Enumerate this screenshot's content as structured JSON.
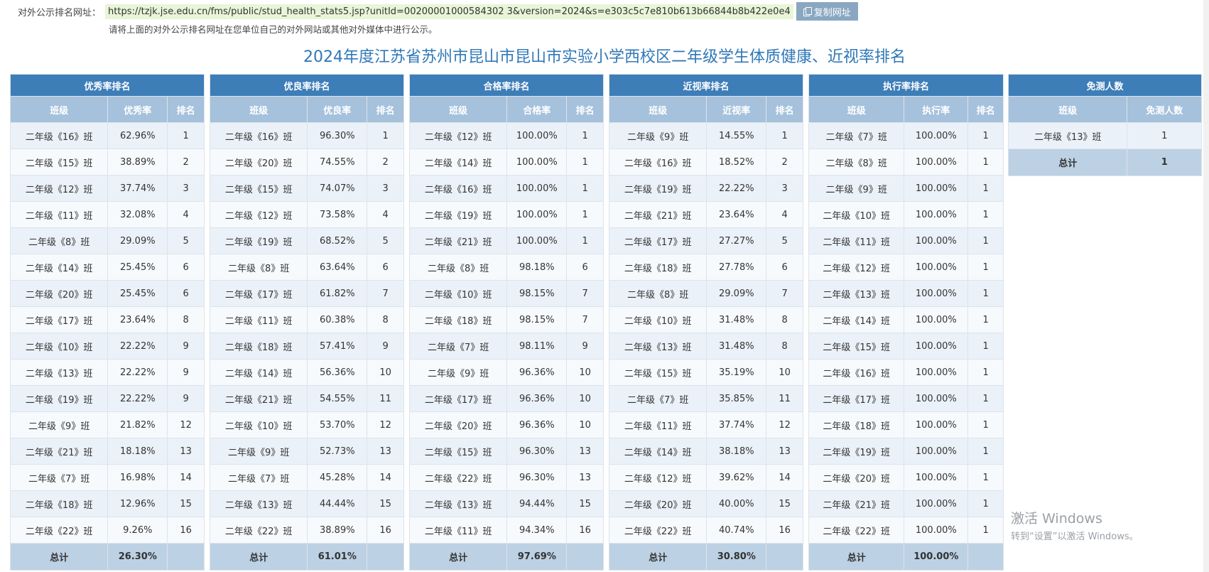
{
  "header": {
    "url_label": "对外公示排名网址：",
    "url": "https://tzjk.jse.edu.cn/fms/public/stud_health_stats5.jsp?unitId=00200001000584302 3&version=2024&s=e303c5c7e810b613b66844b8b422e0e4",
    "copy_button": "复制网址",
    "note": "请将上面的对外公示排名网址在您单位自己的对外网站或其他对外媒体中进行公示。"
  },
  "title": "2024年度江苏省苏州市昆山市昆山市实验小学西校区二年级学生体质健康、近视率排名",
  "tables": [
    {
      "title": "优秀率排名",
      "columns": [
        "班级",
        "优秀率",
        "排名"
      ],
      "rows": [
        [
          "二年级《16》班",
          "62.96%",
          "1"
        ],
        [
          "二年级《15》班",
          "38.89%",
          "2"
        ],
        [
          "二年级《12》班",
          "37.74%",
          "3"
        ],
        [
          "二年级《11》班",
          "32.08%",
          "4"
        ],
        [
          "二年级《8》班",
          "29.09%",
          "5"
        ],
        [
          "二年级《14》班",
          "25.45%",
          "6"
        ],
        [
          "二年级《20》班",
          "25.45%",
          "6"
        ],
        [
          "二年级《17》班",
          "23.64%",
          "8"
        ],
        [
          "二年级《10》班",
          "22.22%",
          "9"
        ],
        [
          "二年级《13》班",
          "22.22%",
          "9"
        ],
        [
          "二年级《19》班",
          "22.22%",
          "9"
        ],
        [
          "二年级《9》班",
          "21.82%",
          "12"
        ],
        [
          "二年级《21》班",
          "18.18%",
          "13"
        ],
        [
          "二年级《7》班",
          "16.98%",
          "14"
        ],
        [
          "二年级《18》班",
          "12.96%",
          "15"
        ],
        [
          "二年级《22》班",
          "9.26%",
          "16"
        ]
      ],
      "total": [
        "总计",
        "26.30%",
        ""
      ]
    },
    {
      "title": "优良率排名",
      "columns": [
        "班级",
        "优良率",
        "排名"
      ],
      "rows": [
        [
          "二年级《16》班",
          "96.30%",
          "1"
        ],
        [
          "二年级《20》班",
          "74.55%",
          "2"
        ],
        [
          "二年级《15》班",
          "74.07%",
          "3"
        ],
        [
          "二年级《12》班",
          "73.58%",
          "4"
        ],
        [
          "二年级《19》班",
          "68.52%",
          "5"
        ],
        [
          "二年级《8》班",
          "63.64%",
          "6"
        ],
        [
          "二年级《17》班",
          "61.82%",
          "7"
        ],
        [
          "二年级《11》班",
          "60.38%",
          "8"
        ],
        [
          "二年级《18》班",
          "57.41%",
          "9"
        ],
        [
          "二年级《14》班",
          "56.36%",
          "10"
        ],
        [
          "二年级《21》班",
          "54.55%",
          "11"
        ],
        [
          "二年级《10》班",
          "53.70%",
          "12"
        ],
        [
          "二年级《9》班",
          "52.73%",
          "13"
        ],
        [
          "二年级《7》班",
          "45.28%",
          "14"
        ],
        [
          "二年级《13》班",
          "44.44%",
          "15"
        ],
        [
          "二年级《22》班",
          "38.89%",
          "16"
        ]
      ],
      "total": [
        "总计",
        "61.01%",
        ""
      ]
    },
    {
      "title": "合格率排名",
      "columns": [
        "班级",
        "合格率",
        "排名"
      ],
      "rows": [
        [
          "二年级《12》班",
          "100.00%",
          "1"
        ],
        [
          "二年级《14》班",
          "100.00%",
          "1"
        ],
        [
          "二年级《16》班",
          "100.00%",
          "1"
        ],
        [
          "二年级《19》班",
          "100.00%",
          "1"
        ],
        [
          "二年级《21》班",
          "100.00%",
          "1"
        ],
        [
          "二年级《8》班",
          "98.18%",
          "6"
        ],
        [
          "二年级《10》班",
          "98.15%",
          "7"
        ],
        [
          "二年级《18》班",
          "98.15%",
          "7"
        ],
        [
          "二年级《7》班",
          "98.11%",
          "9"
        ],
        [
          "二年级《9》班",
          "96.36%",
          "10"
        ],
        [
          "二年级《17》班",
          "96.36%",
          "10"
        ],
        [
          "二年级《20》班",
          "96.36%",
          "10"
        ],
        [
          "二年级《15》班",
          "96.30%",
          "13"
        ],
        [
          "二年级《22》班",
          "96.30%",
          "13"
        ],
        [
          "二年级《13》班",
          "94.44%",
          "15"
        ],
        [
          "二年级《11》班",
          "94.34%",
          "16"
        ]
      ],
      "total": [
        "总计",
        "97.69%",
        ""
      ]
    },
    {
      "title": "近视率排名",
      "columns": [
        "班级",
        "近视率",
        "排名"
      ],
      "rows": [
        [
          "二年级《9》班",
          "14.55%",
          "1"
        ],
        [
          "二年级《16》班",
          "18.52%",
          "2"
        ],
        [
          "二年级《19》班",
          "22.22%",
          "3"
        ],
        [
          "二年级《21》班",
          "23.64%",
          "4"
        ],
        [
          "二年级《17》班",
          "27.27%",
          "5"
        ],
        [
          "二年级《18》班",
          "27.78%",
          "6"
        ],
        [
          "二年级《8》班",
          "29.09%",
          "7"
        ],
        [
          "二年级《10》班",
          "31.48%",
          "8"
        ],
        [
          "二年级《13》班",
          "31.48%",
          "8"
        ],
        [
          "二年级《15》班",
          "35.19%",
          "10"
        ],
        [
          "二年级《7》班",
          "35.85%",
          "11"
        ],
        [
          "二年级《11》班",
          "37.74%",
          "12"
        ],
        [
          "二年级《14》班",
          "38.18%",
          "13"
        ],
        [
          "二年级《12》班",
          "39.62%",
          "14"
        ],
        [
          "二年级《20》班",
          "40.00%",
          "15"
        ],
        [
          "二年级《22》班",
          "40.74%",
          "16"
        ]
      ],
      "total": [
        "总计",
        "30.80%",
        ""
      ]
    },
    {
      "title": "执行率排名",
      "columns": [
        "班级",
        "执行率",
        "排名"
      ],
      "rows": [
        [
          "二年级《7》班",
          "100.00%",
          "1"
        ],
        [
          "二年级《8》班",
          "100.00%",
          "1"
        ],
        [
          "二年级《9》班",
          "100.00%",
          "1"
        ],
        [
          "二年级《10》班",
          "100.00%",
          "1"
        ],
        [
          "二年级《11》班",
          "100.00%",
          "1"
        ],
        [
          "二年级《12》班",
          "100.00%",
          "1"
        ],
        [
          "二年级《13》班",
          "100.00%",
          "1"
        ],
        [
          "二年级《14》班",
          "100.00%",
          "1"
        ],
        [
          "二年级《15》班",
          "100.00%",
          "1"
        ],
        [
          "二年级《16》班",
          "100.00%",
          "1"
        ],
        [
          "二年级《17》班",
          "100.00%",
          "1"
        ],
        [
          "二年级《18》班",
          "100.00%",
          "1"
        ],
        [
          "二年级《19》班",
          "100.00%",
          "1"
        ],
        [
          "二年级《20》班",
          "100.00%",
          "1"
        ],
        [
          "二年级《21》班",
          "100.00%",
          "1"
        ],
        [
          "二年级《22》班",
          "100.00%",
          "1"
        ]
      ],
      "total": [
        "总计",
        "100.00%",
        ""
      ]
    },
    {
      "title": "免测人数",
      "columns": [
        "班级",
        "免测人数"
      ],
      "rows": [
        [
          "二年级《13》班",
          "1"
        ]
      ],
      "total": [
        "总计",
        "1"
      ]
    }
  ],
  "watermark": {
    "line1": "激活 Windows",
    "line2": "转到“设置”以激活 Windows。"
  }
}
